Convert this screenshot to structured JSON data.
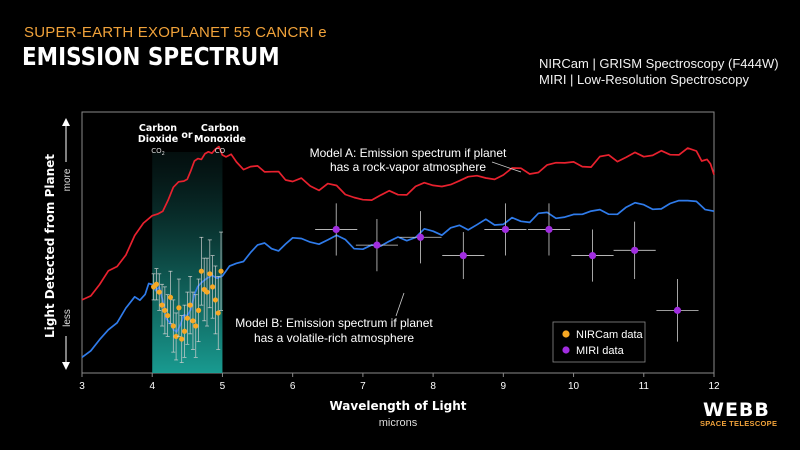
{
  "header": {
    "kicker": "SUPER-EARTH EXOPLANET 55 CANCRI e",
    "title": "EMISSION SPECTRUM",
    "instrument_line1": "NIRCam | GRISM Spectroscopy (F444W)",
    "instrument_line2": "MIRI | Low-Resolution Spectroscopy"
  },
  "logo": {
    "name": "WEBB",
    "sub": "SPACE TELESCOPE"
  },
  "chart_data": {
    "type": "line",
    "title": "",
    "xlabel": "Wavelength of Light",
    "xunit": "microns",
    "ylabel": "Light Detected from Planet",
    "y_more": "more",
    "y_less": "less",
    "xlim": [
      3,
      12
    ],
    "ylim": [
      0,
      10
    ],
    "xticks": [
      3,
      4,
      5,
      6,
      7,
      8,
      9,
      10,
      11,
      12
    ],
    "grid": false,
    "legend": "bottom-right",
    "band": {
      "x0": 4.0,
      "x1": 5.0,
      "label1_line1": "Carbon",
      "label1_line2": "Dioxide",
      "label1_formula": "CO",
      "label1_sub": "2",
      "or": "or",
      "label2_line1": "Carbon",
      "label2_line2": "Monoxide",
      "label2_formula": "CO"
    },
    "series": [
      {
        "name": "Model A: Emission spectrum if planet has a rock-vapor atmosphere",
        "label_line1": "Model A: Emission spectrum if planet",
        "label_line2": "has a rock-vapor atmosphere",
        "color": "#e8212e",
        "x": [
          3.0,
          3.25,
          3.5,
          3.75,
          4.0,
          4.15,
          4.3,
          4.45,
          4.55,
          4.65,
          4.75,
          4.85,
          4.95,
          5.05,
          5.2,
          5.4,
          5.6,
          5.8,
          6.0,
          6.25,
          6.5,
          6.75,
          7.0,
          7.25,
          7.5,
          7.75,
          8.0,
          8.25,
          8.5,
          8.75,
          9.0,
          9.25,
          9.5,
          9.75,
          10.0,
          10.25,
          10.5,
          10.75,
          11.0,
          11.25,
          11.5,
          11.75,
          11.9,
          12.0
        ],
        "y": [
          2.8,
          3.3,
          4.2,
          5.2,
          6.0,
          6.3,
          7.0,
          7.4,
          7.8,
          8.1,
          8.5,
          8.4,
          8.6,
          8.4,
          8.0,
          7.9,
          7.8,
          7.6,
          7.4,
          7.2,
          7.15,
          6.95,
          6.6,
          6.75,
          6.95,
          7.05,
          7.2,
          7.3,
          7.4,
          7.55,
          7.6,
          7.75,
          7.8,
          8.0,
          8.05,
          8.0,
          8.25,
          8.3,
          8.35,
          8.4,
          8.45,
          8.5,
          8.1,
          7.6
        ]
      },
      {
        "name": "Model B: Emission spectrum if planet has a volatile-rich atmosphere",
        "label_line1": "Model B: Emission spectrum if planet",
        "label_line2": "has a volatile-rich atmosphere",
        "color": "#2f7bea",
        "x": [
          3.0,
          3.25,
          3.5,
          3.75,
          3.9,
          4.0,
          4.1,
          4.2,
          4.3,
          4.4,
          4.5,
          4.6,
          4.7,
          4.85,
          5.0,
          5.2,
          5.4,
          5.6,
          5.8,
          6.0,
          6.25,
          6.5,
          6.75,
          7.0,
          7.25,
          7.5,
          7.75,
          8.0,
          8.25,
          8.5,
          8.75,
          9.0,
          9.25,
          9.5,
          9.75,
          10.0,
          10.25,
          10.5,
          10.75,
          11.0,
          11.25,
          11.5,
          11.75,
          12.0
        ],
        "y": [
          0.6,
          1.3,
          2.0,
          2.8,
          3.1,
          3.4,
          3.2,
          2.2,
          1.6,
          1.8,
          2.3,
          2.9,
          3.5,
          3.8,
          3.6,
          4.3,
          4.6,
          4.9,
          4.8,
          5.1,
          5.0,
          5.2,
          5.0,
          4.8,
          4.9,
          5.1,
          5.3,
          5.4,
          5.5,
          5.6,
          5.8,
          5.7,
          5.9,
          6.0,
          6.0,
          6.1,
          6.1,
          6.2,
          6.3,
          6.4,
          6.4,
          6.5,
          6.6,
          6.2
        ]
      }
    ],
    "nircam": {
      "name": "NIRCam data",
      "color": "#f7a823",
      "x": [
        4.02,
        4.06,
        4.1,
        4.14,
        4.18,
        4.22,
        4.26,
        4.3,
        4.34,
        4.38,
        4.42,
        4.46,
        4.5,
        4.54,
        4.58,
        4.62,
        4.66,
        4.7,
        4.74,
        4.78,
        4.82,
        4.86,
        4.9,
        4.94,
        4.98
      ],
      "y": [
        3.3,
        3.4,
        3.1,
        2.6,
        2.4,
        2.2,
        2.9,
        1.8,
        1.4,
        2.5,
        1.3,
        1.6,
        2.1,
        2.6,
        2.0,
        1.8,
        2.4,
        3.9,
        3.2,
        3.1,
        3.8,
        3.3,
        2.8,
        2.3,
        3.9
      ],
      "err": [
        0.5,
        0.6,
        0.7,
        0.8,
        0.9,
        0.8,
        1.0,
        1.0,
        0.9,
        1.1,
        0.9,
        1.0,
        1.0,
        1.1,
        1.1,
        1.2,
        1.2,
        1.3,
        1.2,
        1.3,
        1.3,
        1.2,
        1.3,
        1.4,
        1.5
      ]
    },
    "miri": {
      "name": "MIRI data",
      "color": "#a12de0",
      "x": [
        6.62,
        7.2,
        7.82,
        8.43,
        9.03,
        9.65,
        10.27,
        10.87,
        11.48
      ],
      "xerr": [
        0.3,
        0.3,
        0.3,
        0.3,
        0.3,
        0.3,
        0.3,
        0.3,
        0.3
      ],
      "y": [
        5.5,
        4.9,
        5.2,
        4.5,
        5.5,
        5.5,
        4.5,
        4.7,
        2.4
      ],
      "err": [
        1.0,
        1.0,
        1.0,
        0.9,
        1.0,
        1.0,
        1.0,
        1.1,
        1.2
      ]
    }
  }
}
